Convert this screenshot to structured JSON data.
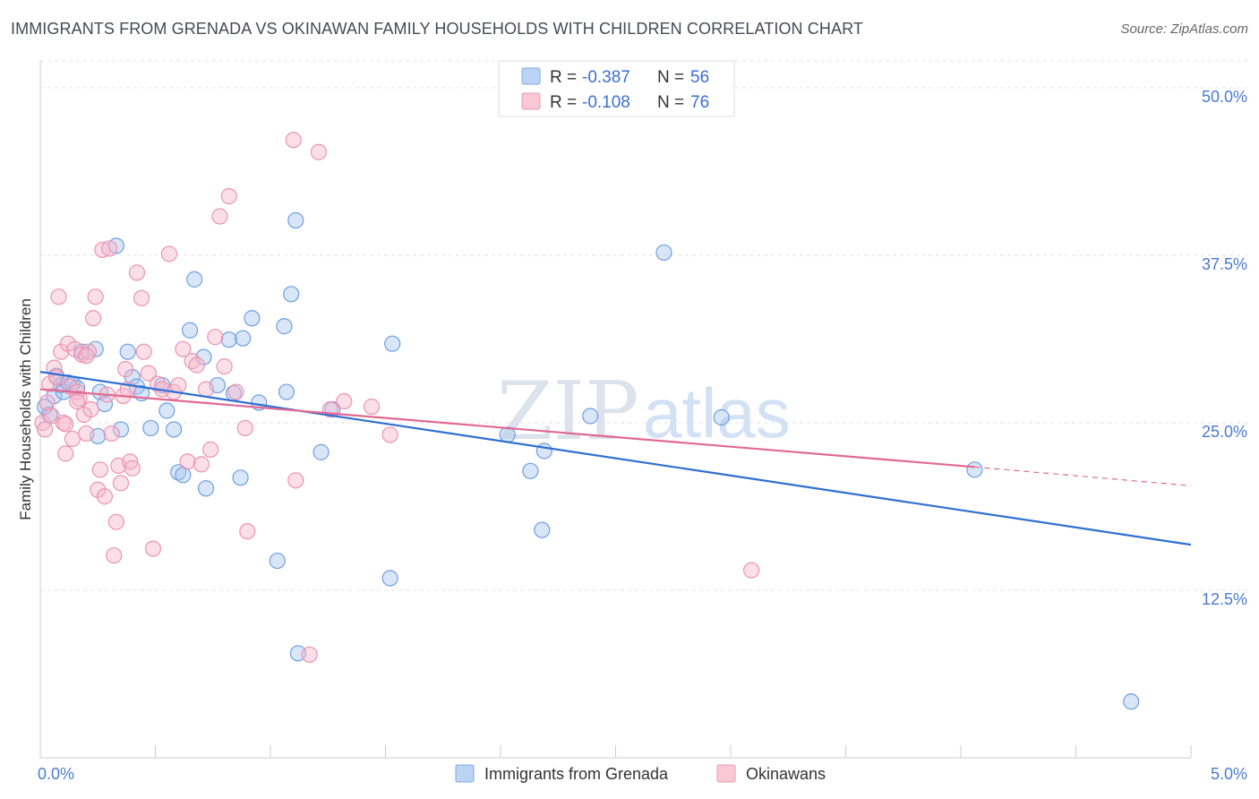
{
  "title": "IMMIGRANTS FROM GRENADA VS OKINAWAN FAMILY HOUSEHOLDS WITH CHILDREN CORRELATION CHART",
  "source": "Source: ZipAtlas.com",
  "watermark": {
    "part1": "ZIP",
    "part2": "atlas"
  },
  "colors": {
    "blue": "#a9c7f0",
    "blue_line": "#2f6fd3",
    "pink": "#f5b8cc",
    "pink_line": "#e06992"
  },
  "legend": {
    "r_label": "R = ",
    "n_label": "N = ",
    "rows": [
      {
        "r": "-0.387",
        "n": "56"
      },
      {
        "r": "-0.108",
        "n": "76"
      }
    ]
  },
  "chart_data": {
    "type": "scatter",
    "title": "IMMIGRANTS FROM GRENADA VS OKINAWAN FAMILY HOUSEHOLDS WITH CHILDREN CORRELATION CHART",
    "xlabel": "",
    "ylabel": "Family Households with Children",
    "xlim": [
      0,
      5
    ],
    "ylim": [
      0,
      52
    ],
    "x_ticks": [
      "0.0%",
      "5.0%"
    ],
    "y_ticks": [
      {
        "value": 12.5,
        "label": "12.5%"
      },
      {
        "value": 25,
        "label": "25.0%"
      },
      {
        "value": 37.5,
        "label": "37.5%"
      },
      {
        "value": 50,
        "label": "50.0%"
      }
    ],
    "series": [
      {
        "name": "Immigrants from Grenada",
        "color": "#a9c7f0",
        "trend": {
          "x": [
            0.0,
            5.0
          ],
          "y": [
            28.8,
            15.9
          ]
        },
        "points": [
          [
            0.02,
            26.2
          ],
          [
            0.04,
            25.6
          ],
          [
            0.06,
            27.0
          ],
          [
            0.07,
            28.5
          ],
          [
            0.09,
            27.8
          ],
          [
            0.1,
            27.3
          ],
          [
            0.12,
            28.0
          ],
          [
            0.14,
            27.9
          ],
          [
            0.16,
            27.6
          ],
          [
            0.18,
            30.3
          ],
          [
            0.24,
            30.5
          ],
          [
            0.26,
            27.3
          ],
          [
            0.28,
            26.4
          ],
          [
            0.33,
            38.2
          ],
          [
            0.35,
            24.5
          ],
          [
            0.4,
            28.4
          ],
          [
            0.42,
            27.7
          ],
          [
            0.44,
            27.2
          ],
          [
            0.48,
            24.6
          ],
          [
            0.53,
            27.8
          ],
          [
            0.58,
            24.5
          ],
          [
            0.6,
            21.3
          ],
          [
            0.62,
            21.1
          ],
          [
            0.65,
            31.9
          ],
          [
            0.67,
            35.7
          ],
          [
            0.71,
            29.9
          ],
          [
            0.72,
            20.1
          ],
          [
            0.77,
            27.8
          ],
          [
            0.82,
            31.2
          ],
          [
            0.84,
            27.2
          ],
          [
            0.87,
            20.9
          ],
          [
            0.88,
            31.3
          ],
          [
            0.92,
            32.8
          ],
          [
            0.95,
            26.5
          ],
          [
            1.03,
            14.7
          ],
          [
            1.06,
            32.2
          ],
          [
            1.07,
            27.3
          ],
          [
            1.09,
            34.6
          ],
          [
            1.11,
            40.1
          ],
          [
            1.12,
            7.8
          ],
          [
            1.22,
            22.8
          ],
          [
            1.27,
            26.0
          ],
          [
            1.52,
            13.4
          ],
          [
            1.53,
            30.9
          ],
          [
            2.03,
            24.1
          ],
          [
            2.13,
            21.4
          ],
          [
            2.18,
            17.0
          ],
          [
            2.19,
            22.9
          ],
          [
            2.39,
            25.5
          ],
          [
            2.71,
            37.7
          ],
          [
            2.96,
            25.4
          ],
          [
            4.06,
            21.5
          ],
          [
            4.74,
            4.2
          ],
          [
            0.25,
            24.0
          ],
          [
            0.38,
            30.3
          ],
          [
            0.55,
            25.9
          ]
        ]
      },
      {
        "name": "Okinawans",
        "color": "#f5b8cc",
        "trend": {
          "x": [
            0.0,
            4.06
          ],
          "y": [
            27.5,
            21.7
          ]
        },
        "trend_dashed": {
          "x": [
            4.06,
            5.0
          ],
          "y": [
            21.7,
            20.3
          ]
        },
        "points": [
          [
            0.01,
            25.0
          ],
          [
            0.02,
            24.5
          ],
          [
            0.03,
            26.5
          ],
          [
            0.04,
            27.9
          ],
          [
            0.05,
            25.5
          ],
          [
            0.06,
            29.1
          ],
          [
            0.07,
            28.4
          ],
          [
            0.08,
            34.4
          ],
          [
            0.09,
            30.3
          ],
          [
            0.1,
            25.0
          ],
          [
            0.11,
            22.7
          ],
          [
            0.12,
            30.9
          ],
          [
            0.13,
            27.7
          ],
          [
            0.14,
            23.8
          ],
          [
            0.15,
            30.5
          ],
          [
            0.16,
            27.3
          ],
          [
            0.17,
            26.8
          ],
          [
            0.18,
            30.1
          ],
          [
            0.19,
            25.6
          ],
          [
            0.2,
            24.2
          ],
          [
            0.21,
            30.3
          ],
          [
            0.22,
            26.0
          ],
          [
            0.23,
            32.8
          ],
          [
            0.24,
            34.4
          ],
          [
            0.25,
            20.0
          ],
          [
            0.26,
            21.5
          ],
          [
            0.27,
            37.9
          ],
          [
            0.28,
            19.5
          ],
          [
            0.29,
            27.1
          ],
          [
            0.3,
            38.0
          ],
          [
            0.31,
            24.2
          ],
          [
            0.32,
            15.1
          ],
          [
            0.33,
            17.6
          ],
          [
            0.34,
            21.8
          ],
          [
            0.35,
            20.5
          ],
          [
            0.36,
            27.0
          ],
          [
            0.37,
            29.0
          ],
          [
            0.38,
            27.5
          ],
          [
            0.39,
            22.1
          ],
          [
            0.4,
            21.6
          ],
          [
            0.42,
            36.2
          ],
          [
            0.44,
            34.3
          ],
          [
            0.45,
            30.3
          ],
          [
            0.47,
            28.7
          ],
          [
            0.49,
            15.6
          ],
          [
            0.51,
            27.9
          ],
          [
            0.53,
            27.5
          ],
          [
            0.56,
            37.6
          ],
          [
            0.58,
            27.3
          ],
          [
            0.6,
            27.8
          ],
          [
            0.62,
            30.5
          ],
          [
            0.64,
            22.1
          ],
          [
            0.66,
            29.6
          ],
          [
            0.68,
            29.3
          ],
          [
            0.7,
            21.9
          ],
          [
            0.72,
            27.5
          ],
          [
            0.74,
            23.0
          ],
          [
            0.76,
            31.4
          ],
          [
            0.78,
            40.4
          ],
          [
            0.8,
            29.2
          ],
          [
            0.82,
            41.9
          ],
          [
            0.85,
            27.3
          ],
          [
            0.89,
            24.6
          ],
          [
            0.9,
            16.9
          ],
          [
            1.1,
            46.1
          ],
          [
            1.11,
            20.7
          ],
          [
            1.17,
            7.7
          ],
          [
            1.21,
            45.2
          ],
          [
            1.26,
            26.0
          ],
          [
            1.32,
            26.6
          ],
          [
            1.44,
            26.2
          ],
          [
            1.52,
            24.1
          ],
          [
            3.09,
            14.0
          ],
          [
            0.11,
            24.9
          ],
          [
            0.16,
            26.6
          ],
          [
            0.2,
            30.0
          ]
        ]
      }
    ]
  }
}
